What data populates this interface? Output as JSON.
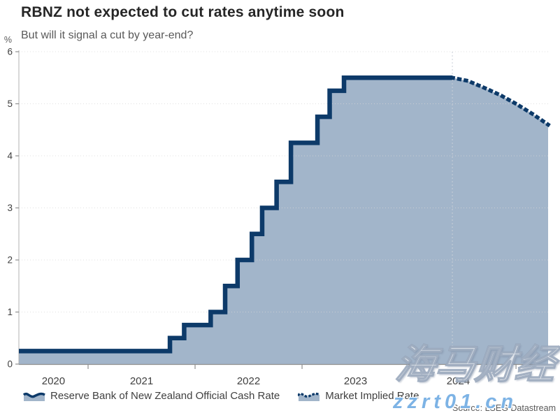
{
  "header": {
    "title": "RBNZ not expected to cut rates anytime soon",
    "subtitle": "But will it signal a cut by year-end?"
  },
  "chart_data": {
    "type": "area",
    "unit_label": "%",
    "xlim": [
      2020.353,
      2025.3
    ],
    "ylim": [
      0,
      6
    ],
    "y_ticks": [
      0,
      1,
      2,
      3,
      4,
      5,
      6
    ],
    "x_year_ticks": [
      2021,
      2022,
      2023,
      2024,
      2025
    ],
    "x_labels": [
      {
        "label": "2020",
        "x": 2020.676
      },
      {
        "label": "2021",
        "x": 2021.5
      },
      {
        "label": "2022",
        "x": 2022.5
      },
      {
        "label": "2023",
        "x": 2023.5
      },
      {
        "label": "2024",
        "x": 2024.46
      }
    ],
    "now_marker_x": 2024.405,
    "series": [
      {
        "name": "Reserve Bank of New Zealand Official Cash Rate",
        "style": "solid-step",
        "points": [
          [
            2020.353,
            0.25
          ],
          [
            2021.765,
            0.5
          ],
          [
            2021.898,
            0.75
          ],
          [
            2022.146,
            1.0
          ],
          [
            2022.281,
            1.5
          ],
          [
            2022.397,
            2.0
          ],
          [
            2022.531,
            2.5
          ],
          [
            2022.627,
            3.0
          ],
          [
            2022.762,
            3.5
          ],
          [
            2022.896,
            4.25
          ],
          [
            2023.144,
            4.75
          ],
          [
            2023.258,
            5.25
          ],
          [
            2023.392,
            5.5
          ],
          [
            2024.405,
            5.5
          ]
        ]
      },
      {
        "name": "Market Implied Rate",
        "style": "dotted",
        "points": [
          [
            2024.405,
            5.5
          ],
          [
            2024.55,
            5.44
          ],
          [
            2024.7,
            5.31
          ],
          [
            2024.85,
            5.17
          ],
          [
            2025.0,
            5.0
          ],
          [
            2025.15,
            4.81
          ],
          [
            2025.3,
            4.6
          ]
        ]
      }
    ],
    "colors": {
      "line": "#0d3a69",
      "fill": "#a2b5ca",
      "grid": "#d6d6d6",
      "axis": "#8f8f8f",
      "tick_text": "#404040",
      "muted": "#595959"
    }
  },
  "legend": {
    "items": [
      {
        "label": "Reserve Bank of New Zealand Official Cash Rate"
      },
      {
        "label": "Market Implied Rate"
      }
    ]
  },
  "footer": {
    "source": "Source: LSEG Datastream"
  },
  "watermark": {
    "cn": "海马财经",
    "url": "zzrt01.cn"
  }
}
